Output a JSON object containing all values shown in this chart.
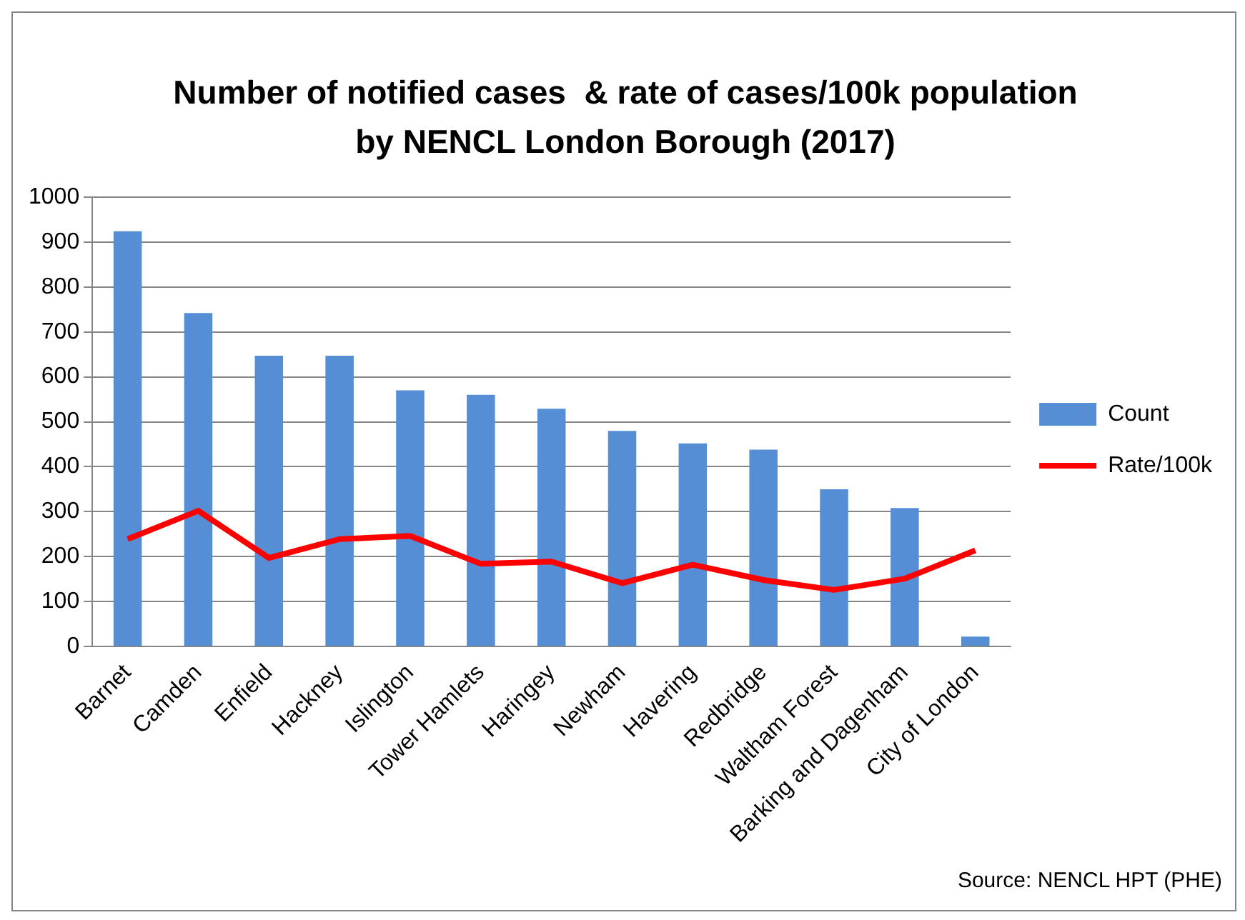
{
  "chart_data": {
    "type": "bar",
    "title": [
      "Number of notified cases  & rate of cases/100k population",
      "by NENCL London Borough (2017)"
    ],
    "categories": [
      "Barnet",
      "Camden",
      "Enfield",
      "Hackney",
      "Islington",
      "Tower Hamlets",
      "Haringey",
      "Newham",
      "Havering",
      "Redbridge",
      "Waltham Forest",
      "Barking and Dagenham",
      "City of London"
    ],
    "series": [
      {
        "name": "Count",
        "color": "#558ed5",
        "values": [
          924,
          742,
          647,
          647,
          570,
          560,
          529,
          480,
          452,
          438,
          350,
          308,
          22
        ]
      },
      {
        "name": "Rate/100k",
        "type": "line",
        "color": "#ff0000",
        "values": [
          239,
          302,
          197,
          239,
          246,
          184,
          189,
          141,
          182,
          148,
          126,
          151,
          214
        ]
      }
    ],
    "ylim": [
      0,
      1000
    ],
    "yticks": [
      0,
      100,
      200,
      300,
      400,
      500,
      600,
      700,
      800,
      900,
      1000
    ],
    "grid": "y",
    "legend": "right",
    "marker": "none",
    "annotations": [
      "Source: NENCL HPT (PHE)"
    ]
  }
}
